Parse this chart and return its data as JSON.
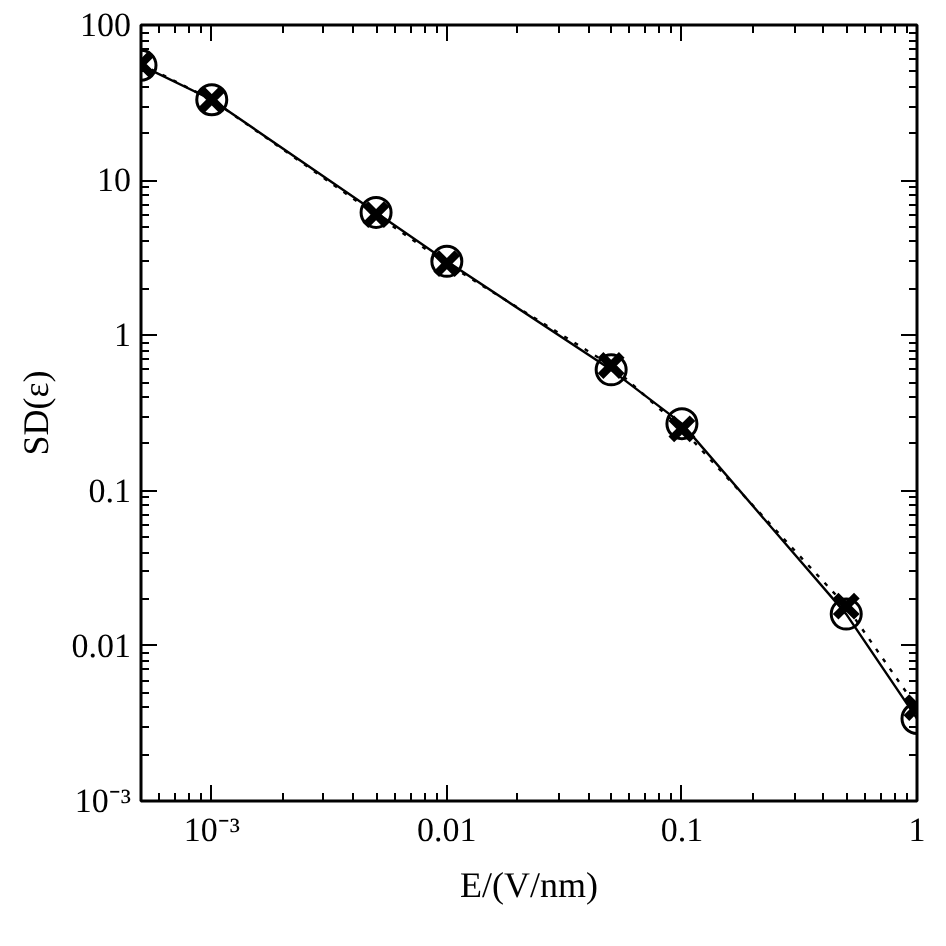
{
  "chart_data": {
    "type": "line",
    "xlabel": "E/(V/nm)",
    "ylabel": "SD(ε)",
    "log": "xy",
    "grid": false,
    "x": [
      0.0005,
      0.001,
      0.005,
      0.01,
      0.05,
      0.1,
      0.5,
      1
    ],
    "series": [
      {
        "color": "#000000",
        "marker": "circle",
        "line_style": "solid",
        "values": [
          55,
          33,
          6.2,
          3.0,
          0.6,
          0.27,
          0.016,
          0.0034
        ]
      },
      {
        "color": "#000000",
        "marker": "cross",
        "line_style": "dotted",
        "values": [
          56,
          33,
          6.0,
          2.9,
          0.64,
          0.25,
          0.018,
          0.004
        ]
      }
    ],
    "xlim": [
      0.0005,
      1
    ],
    "ylim": [
      0.001,
      100
    ],
    "xticks": [
      {
        "value": 0.001,
        "label": "10⁻³"
      },
      0.01,
      0.1,
      1
    ],
    "yticks": [
      {
        "value": 0.001,
        "label": "10⁻³"
      },
      0.01,
      0.1,
      1,
      10,
      100
    ]
  }
}
